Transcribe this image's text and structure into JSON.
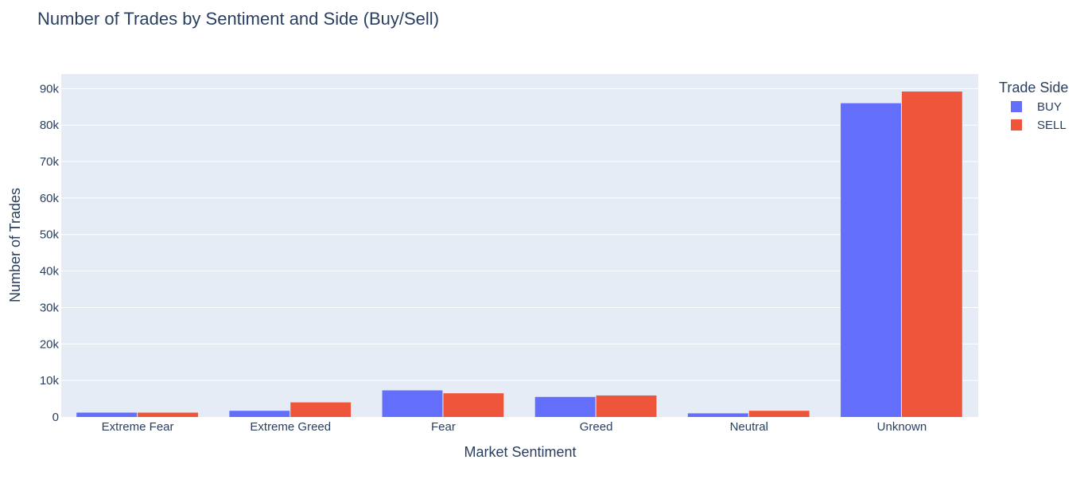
{
  "chart_data": {
    "type": "bar",
    "title": "Number of Trades by Sentiment and Side (Buy/Sell)",
    "xlabel": "Market Sentiment",
    "ylabel": "Number of Trades",
    "categories": [
      "Extreme Fear",
      "Extreme Greed",
      "Fear",
      "Greed",
      "Neutral",
      "Unknown"
    ],
    "series": [
      {
        "name": "BUY",
        "color": "#636efa",
        "values": [
          1200,
          1700,
          7300,
          5500,
          1000,
          86000
        ]
      },
      {
        "name": "SELL",
        "color": "#ef553b",
        "values": [
          1200,
          4000,
          6500,
          5900,
          1700,
          89200
        ]
      }
    ],
    "ylim": [
      0,
      94000
    ],
    "yticks": [
      0,
      10000,
      20000,
      30000,
      40000,
      50000,
      60000,
      70000,
      80000,
      90000
    ],
    "ytick_labels": [
      "0",
      "10k",
      "20k",
      "30k",
      "40k",
      "50k",
      "60k",
      "70k",
      "80k",
      "90k"
    ],
    "grid": true,
    "legend": {
      "title": "Trade Side",
      "position": "right"
    },
    "plot_background": "#e5ecf6"
  }
}
